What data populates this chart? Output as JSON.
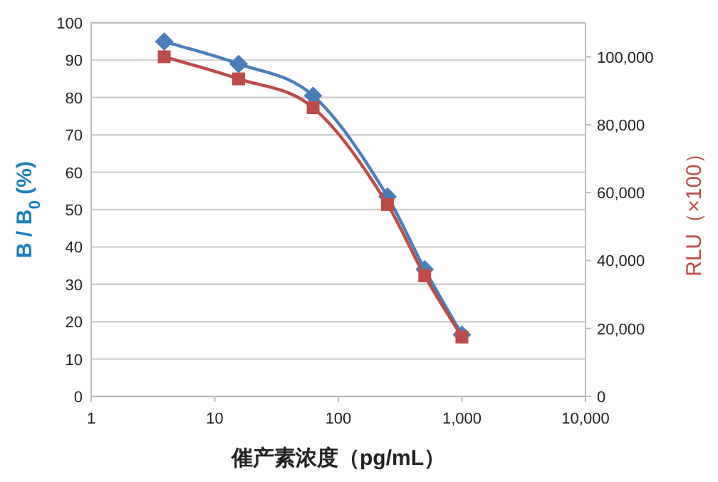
{
  "chart_data": {
    "type": "line",
    "xlabel": "催产素浓度（pg/mL）",
    "ylabel": "B / B$_{0}$ (%)",
    "y2label": "RLU（×100）",
    "log": "x",
    "grid": "y",
    "line_style": "solid",
    "xlim": [
      1,
      10000
    ],
    "xticks": [
      1,
      10,
      100,
      {
        "value": 1000,
        "label": "1,000"
      },
      {
        "value": 10000,
        "label": "10,000"
      }
    ],
    "ylim": [
      0,
      100
    ],
    "yticks": [
      0,
      10,
      20,
      30,
      40,
      50,
      60,
      70,
      80,
      90,
      100
    ],
    "y2lim": [
      0,
      110000
    ],
    "y2ticks": [
      0,
      {
        "value": 20000,
        "label": "20,000"
      },
      {
        "value": 40000,
        "label": "40,000"
      },
      {
        "value": 60000,
        "label": "60,000"
      },
      {
        "value": 80000,
        "label": "80,000"
      },
      {
        "value": 100000,
        "label": "100,000"
      }
    ],
    "series": [
      {
        "color": "#4a7ebb",
        "marker": "diamond",
        "x": [
          3.9,
          15.6,
          62.5,
          250,
          500,
          1000
        ],
        "values": [
          95,
          89,
          80.5,
          53.5,
          34,
          16.5
        ]
      },
      {
        "color": "#be4b48",
        "marker": "square",
        "axis": "y2",
        "x": [
          3.9,
          15.6,
          62.5,
          250,
          500,
          1000
        ],
        "values": [
          100000,
          93500,
          85000,
          56500,
          35500,
          17500
        ]
      }
    ]
  }
}
